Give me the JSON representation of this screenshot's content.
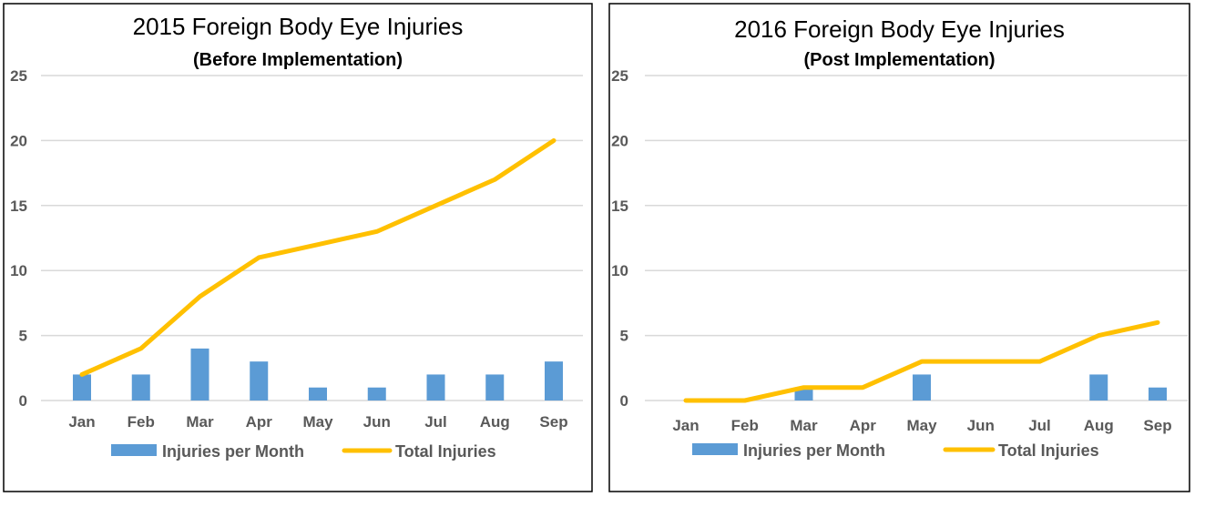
{
  "chart_data": [
    {
      "type": "bar+line",
      "title": "2015 Foreign Body Eye Injuries",
      "subtitle": "(Before Implementation)",
      "categories": [
        "Jan",
        "Feb",
        "Mar",
        "Apr",
        "May",
        "Jun",
        "Jul",
        "Aug",
        "Sep"
      ],
      "series": [
        {
          "name": "Injuries per Month",
          "type": "bar",
          "color": "#5B9BD5",
          "values": [
            2,
            2,
            4,
            3,
            1,
            1,
            2,
            2,
            3
          ]
        },
        {
          "name": "Total Injuries",
          "type": "line",
          "color": "#FFC000",
          "values": [
            2,
            4,
            8,
            11,
            12,
            13,
            15,
            17,
            20
          ]
        }
      ],
      "ylim": [
        0,
        25
      ],
      "yticks": [
        "0",
        "5",
        "10",
        "15",
        "20",
        "25"
      ],
      "grid": true,
      "legend": "bottom"
    },
    {
      "type": "bar+line",
      "title": "2016 Foreign Body Eye Injuries",
      "subtitle": "(Post Implementation)",
      "categories": [
        "Jan",
        "Feb",
        "Mar",
        "Apr",
        "May",
        "Jun",
        "Jul",
        "Aug",
        "Sep"
      ],
      "series": [
        {
          "name": "Injuries per Month",
          "type": "bar",
          "color": "#5B9BD5",
          "values": [
            0,
            0,
            1,
            0,
            2,
            0,
            0,
            2,
            1
          ]
        },
        {
          "name": "Total Injuries",
          "type": "line",
          "color": "#FFC000",
          "values": [
            0,
            0,
            1,
            1,
            3,
            3,
            3,
            5,
            6
          ]
        }
      ],
      "ylim": [
        0,
        25
      ],
      "yticks": [
        "0",
        "5",
        "10",
        "15",
        "20",
        "25"
      ],
      "grid": true,
      "legend": "bottom"
    }
  ]
}
